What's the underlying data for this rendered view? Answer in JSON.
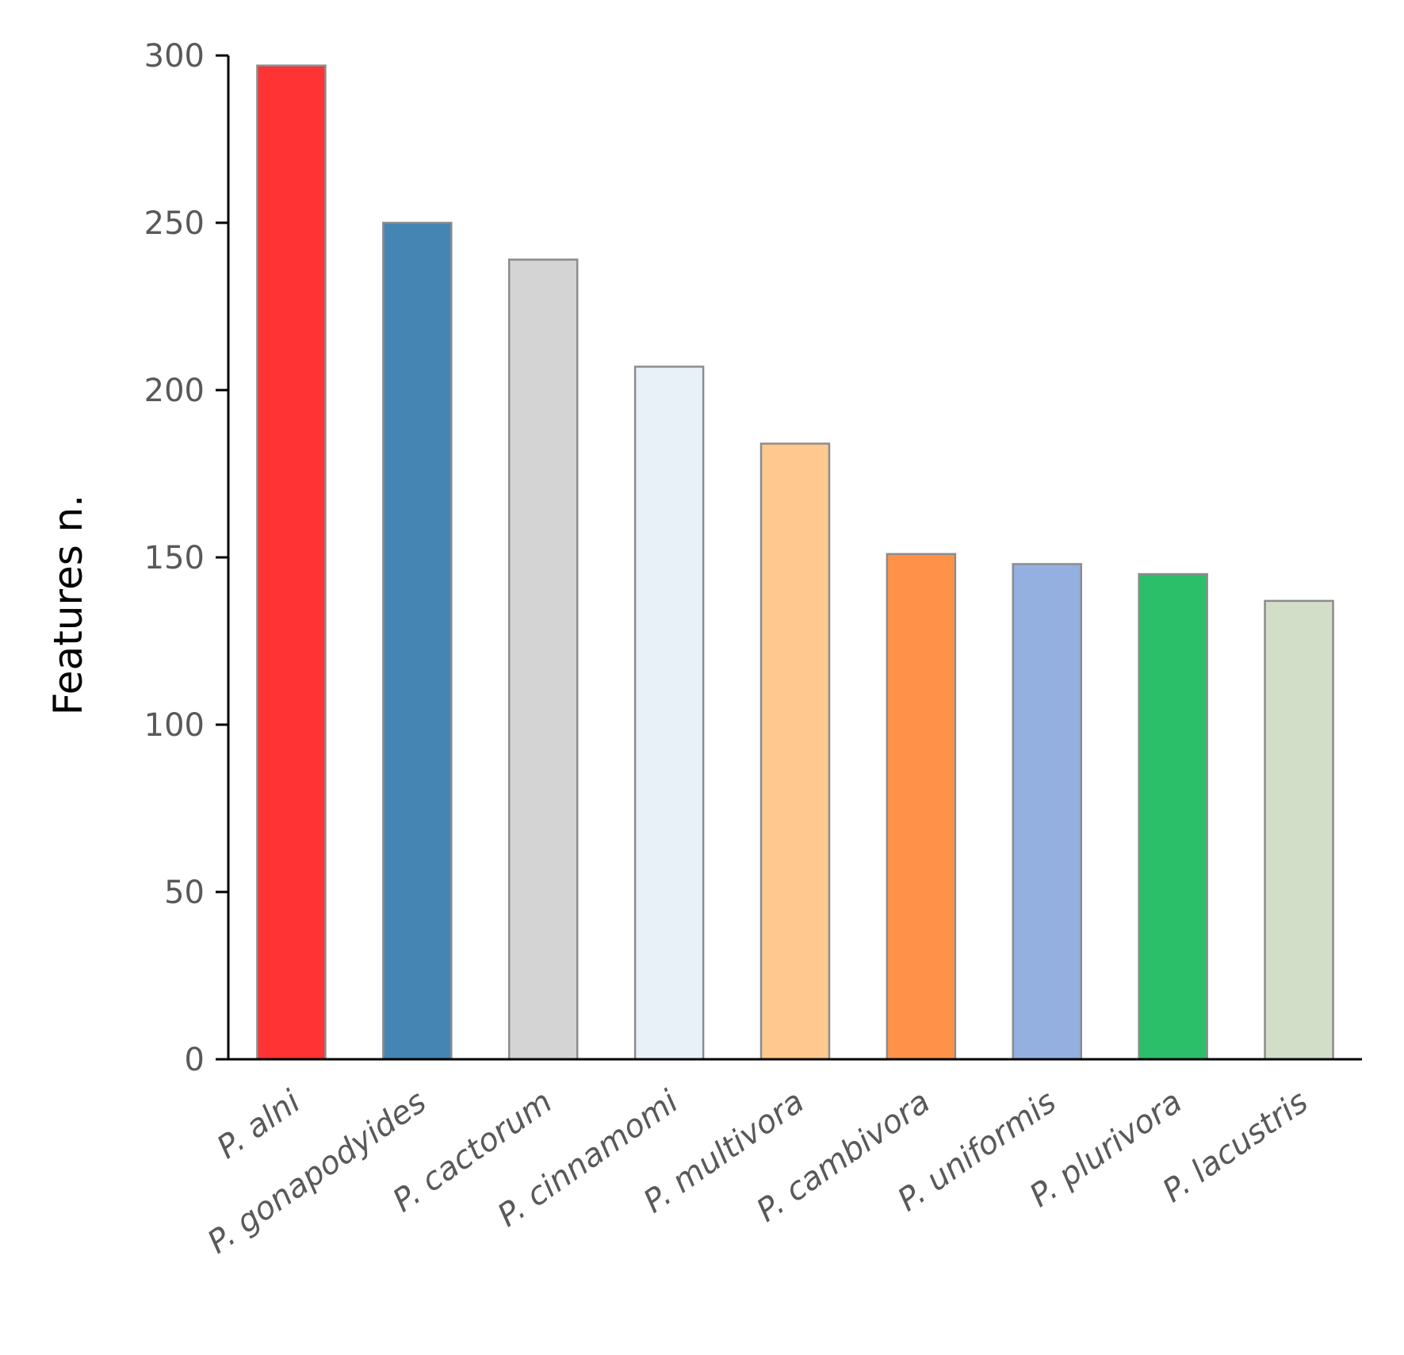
{
  "chart_data": {
    "type": "bar",
    "title": "",
    "xlabel": "",
    "ylabel": "Features n.",
    "ylim": [
      0,
      300
    ],
    "yticks": [
      0,
      50,
      100,
      150,
      200,
      250,
      300
    ],
    "grid": false,
    "legend": "none",
    "categories": [
      "P. alni",
      "P. gonapodyides",
      "P. cactorum",
      "P. cinnamomi",
      "P. multivora",
      "P. cambivora",
      "P. uniformis",
      "P. plurivora",
      "P. lacustris"
    ],
    "values": [
      297,
      250,
      239,
      207,
      184,
      151,
      148,
      145,
      137
    ],
    "colors": [
      "#ff3333",
      "#4585b3",
      "#d4d4d4",
      "#e8f0f8",
      "#ffc88f",
      "#ff9248",
      "#93b0e0",
      "#2cbf6a",
      "#d2dec8"
    ],
    "bar_outline_color": "#8c8c8c",
    "axis_color": "#000000"
  }
}
